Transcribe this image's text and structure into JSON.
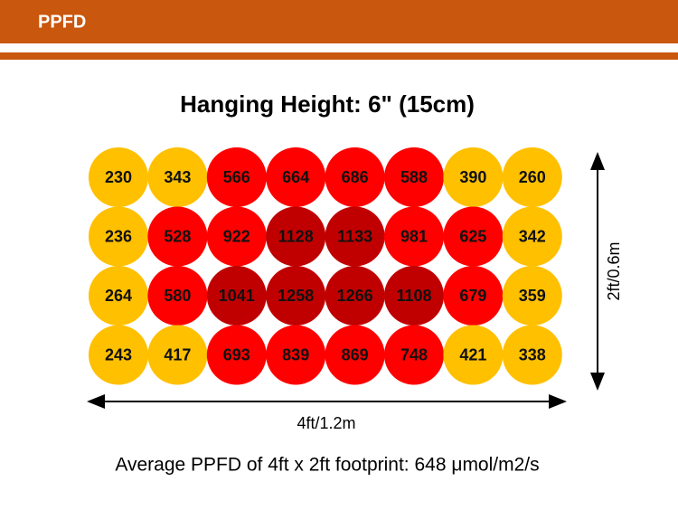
{
  "header": {
    "title": "PPFD"
  },
  "title": "Hanging Height: 6\" (15cm)",
  "grid": {
    "rows": [
      [
        230,
        343,
        566,
        664,
        686,
        588,
        390,
        260
      ],
      [
        236,
        528,
        922,
        1128,
        1133,
        981,
        625,
        342
      ],
      [
        264,
        580,
        1041,
        1258,
        1266,
        1108,
        679,
        359
      ],
      [
        243,
        417,
        693,
        839,
        869,
        748,
        421,
        338
      ]
    ],
    "colors": [
      [
        "#FFC000",
        "#FFC000",
        "#FF0000",
        "#FF0000",
        "#FF0000",
        "#FF0000",
        "#FFC000",
        "#FFC000"
      ],
      [
        "#FFC000",
        "#FF0000",
        "#FF0000",
        "#C00000",
        "#C00000",
        "#FF0000",
        "#FF0000",
        "#FFC000"
      ],
      [
        "#FFC000",
        "#FF0000",
        "#C00000",
        "#C00000",
        "#C00000",
        "#C00000",
        "#FF0000",
        "#FFC000"
      ],
      [
        "#FFC000",
        "#FFC000",
        "#FF0000",
        "#FF0000",
        "#FF0000",
        "#FF0000",
        "#FFC000",
        "#FFC000"
      ]
    ]
  },
  "height_label": "2ft/0.6m",
  "width_label": "4ft/1.2m",
  "footer": "Average PPFD of 4ft x 2ft footprint: 648 μmol/m2/s"
}
